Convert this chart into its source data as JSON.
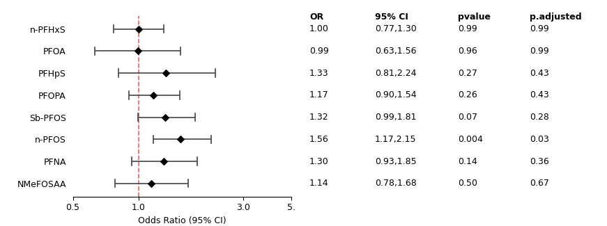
{
  "compounds": [
    "n-PFHxS",
    "PFOA",
    "PFHpS",
    "PFOPA",
    "Sb-PFOS",
    "n-PFOS",
    "PFNA",
    "NMeFOSAA"
  ],
  "OR": [
    1.0,
    0.99,
    1.33,
    1.17,
    1.32,
    1.56,
    1.3,
    1.14
  ],
  "CI_low": [
    0.77,
    0.63,
    0.81,
    0.9,
    0.99,
    1.17,
    0.93,
    0.78
  ],
  "CI_high": [
    1.3,
    1.56,
    2.24,
    1.54,
    1.81,
    2.15,
    1.85,
    1.68
  ],
  "OR_str": [
    "1.00",
    "0.99",
    "1.33",
    "1.17",
    "1.32",
    "1.56",
    "1.30",
    "1.14"
  ],
  "CI_str": [
    "0.77,1.30",
    "0.63,1.56",
    "0.81,2.24",
    "0.90,1.54",
    "0.99,1.81",
    "1.17,2.15",
    "0.93,1.85",
    "0.78,1.68"
  ],
  "pvalue_str": [
    "0.99",
    "0.96",
    "0.27",
    "0.26",
    "0.07",
    "0.004",
    "0.14",
    "0.50"
  ],
  "padjusted_str": [
    "0.99",
    "0.99",
    "0.43",
    "0.43",
    "0.28",
    "0.03",
    "0.36",
    "0.67"
  ],
  "xmin": 0.5,
  "xmax": 5.0,
  "xticks": [
    0.5,
    1.0,
    3.0,
    5.0
  ],
  "xtick_labels": [
    "0.5",
    "1.0",
    "3.0",
    "5."
  ],
  "xlabel": "Odds Ratio (95% CI)",
  "ref_line": 1.0,
  "ref_line_color": "#E8635A",
  "point_color": "#000000",
  "line_color": "#444444",
  "marker": "D",
  "marker_size": 5,
  "table_header": [
    "OR",
    "95% CI",
    "pvalue",
    "p.adjusted"
  ],
  "header_fontsize": 9,
  "table_fontsize": 9,
  "tick_fontsize": 9,
  "ylabel_fontsize": 9,
  "xlabel_fontsize": 9,
  "background_color": "#ffffff"
}
